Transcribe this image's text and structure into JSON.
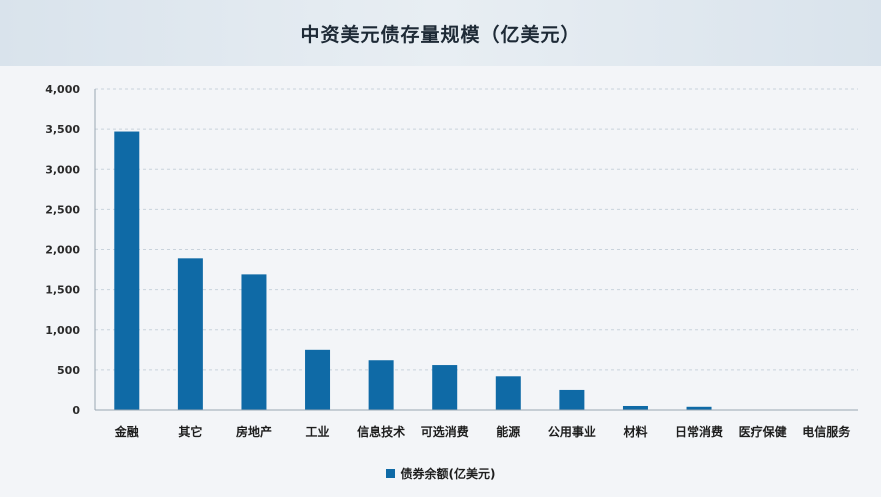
{
  "title": "中资美元债存量规模（亿美元）",
  "colors": {
    "bar": "#0f6aa6",
    "grid": "#c9d3dc",
    "axis": "#9aa6b2"
  },
  "chart_data": {
    "type": "bar",
    "categories": [
      "金融",
      "其它",
      "房地产",
      "工业",
      "信息技术",
      "可选消费",
      "能源",
      "公用事业",
      "材料",
      "日常消费",
      "医疗保健",
      "电信服务"
    ],
    "series": [
      {
        "name": "债券余额(亿美元)",
        "values": [
          3470,
          1890,
          1690,
          750,
          620,
          560,
          420,
          250,
          50,
          40,
          5,
          3
        ]
      }
    ],
    "yticks": [
      "0",
      "500",
      "1,000",
      "1,500",
      "2,000",
      "2,500",
      "3,000",
      "3,500",
      "4,000"
    ],
    "ylim": [
      0,
      4000
    ],
    "grid": true,
    "legend": "bottom"
  }
}
